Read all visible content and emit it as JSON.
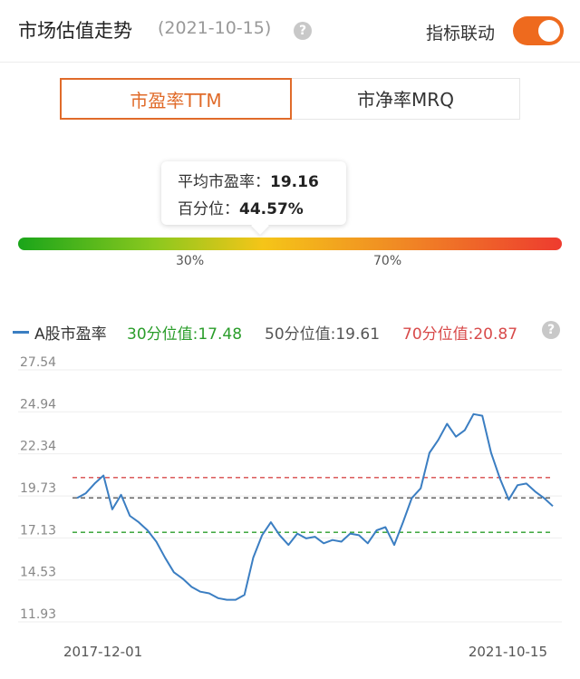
{
  "header": {
    "title": "市场估值走势",
    "date": "(2021-10-15)",
    "help_glyph": "?",
    "linkage_label": "指标联动",
    "linkage_on": true
  },
  "tabs": [
    {
      "label": "市盈率TTM",
      "active": true
    },
    {
      "label": "市净率MRQ",
      "active": false
    }
  ],
  "tooltip": {
    "avg_label": "平均市盈率：",
    "avg_value": "19.16",
    "percentile_label": "百分位：",
    "percentile_value": "44.57%"
  },
  "gradient": {
    "marker_30": "30%",
    "marker_70": "70%",
    "colors": [
      "#1aa51a",
      "#f5c518",
      "#ee3b2f"
    ]
  },
  "legend": {
    "series": "A股市盈率",
    "p30": "30分位值:17.48",
    "p50": "50分位值:19.61",
    "p70": "70分位值:20.87",
    "help_glyph": "?",
    "colors": {
      "series": "#3b7ec2",
      "p30": "#2a9d2a",
      "p50": "#555555",
      "p70": "#d84a4a"
    }
  },
  "chart_data": {
    "type": "line",
    "title": "",
    "xlabel": "",
    "ylabel": "",
    "x_start": "2017-12-01",
    "x_end": "2021-10-15",
    "yticks": [
      "27.54",
      "24.94",
      "22.34",
      "19.73",
      "17.13",
      "14.53",
      "11.93"
    ],
    "ylim": [
      11.93,
      27.54
    ],
    "reference_lines": [
      {
        "name": "30分位值",
        "value": 17.48,
        "color": "#2a9d2a"
      },
      {
        "name": "50分位值",
        "value": 19.61,
        "color": "#555555"
      },
      {
        "name": "70分位值",
        "value": 20.87,
        "color": "#d84a4a"
      }
    ],
    "grid": true,
    "series": [
      {
        "name": "A股市盈率",
        "color": "#3b7ec2",
        "values": [
          19.6,
          19.9,
          20.5,
          21.0,
          18.9,
          19.8,
          18.5,
          18.1,
          17.6,
          16.9,
          15.9,
          15.0,
          14.6,
          14.1,
          13.8,
          13.7,
          13.4,
          13.3,
          13.3,
          13.6,
          15.9,
          17.3,
          18.1,
          17.3,
          16.7,
          17.4,
          17.1,
          17.2,
          16.8,
          17.0,
          16.9,
          17.4,
          17.3,
          16.8,
          17.6,
          17.8,
          16.7,
          18.1,
          19.6,
          20.2,
          22.4,
          23.2,
          24.2,
          23.4,
          23.8,
          24.8,
          24.7,
          22.4,
          20.8,
          19.5,
          20.4,
          20.5,
          20.0,
          19.6,
          19.1
        ]
      }
    ]
  }
}
